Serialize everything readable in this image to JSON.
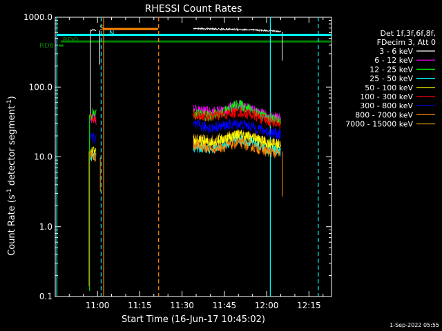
{
  "chart_data": {
    "type": "line",
    "title": "RHESSI Count Rates",
    "xlabel": "Start Time (16-Jun-17 10:45:02)",
    "ylabel_main": "Count Rate (s",
    "ylabel_sup": "-1",
    "ylabel_tail": " detector segment",
    "ylabel_sup2": "-1",
    "ylabel_close": ")",
    "yscale": "log",
    "ylim": [
      0.1,
      1000
    ],
    "xlim_minutes": [
      45.03,
      143
    ],
    "y_ticks": [
      {
        "v": 0.1,
        "label": "0.1"
      },
      {
        "v": 1,
        "label": "1.0"
      },
      {
        "v": 10,
        "label": "10.0"
      },
      {
        "v": 100,
        "label": "100.0"
      },
      {
        "v": 1000,
        "label": "1000.0"
      }
    ],
    "x_ticks": [
      {
        "v": 60,
        "label": "11:00"
      },
      {
        "v": 75,
        "label": "11:15"
      },
      {
        "v": 90,
        "label": "11:30"
      },
      {
        "v": 105,
        "label": "11:45"
      },
      {
        "v": 120,
        "label": "12:00"
      },
      {
        "v": 135,
        "label": "12:15"
      }
    ],
    "legend": {
      "header1": "Det 1f,3f,6f,8f,",
      "header2": "FDecim 3, Att 0",
      "placement": "right"
    },
    "series": [
      {
        "name": "3 - 6 keV",
        "color": "#ffffff",
        "seg1": [
          [
            57.5,
            640
          ],
          [
            58.5,
            660
          ],
          [
            59.5,
            650
          ]
        ],
        "seg2": [
          [
            94,
            690
          ],
          [
            100,
            680
          ],
          [
            110,
            670
          ],
          [
            118,
            650
          ],
          [
            122,
            640
          ],
          [
            125,
            620
          ]
        ]
      },
      {
        "name": "6 - 12 keV",
        "color": "#ff00ff",
        "seg1": [
          [
            57.5,
            35
          ],
          [
            58.5,
            37
          ],
          [
            59.5,
            36
          ]
        ],
        "seg2": [
          [
            94,
            47
          ],
          [
            100,
            44
          ],
          [
            105,
            47
          ],
          [
            110,
            55
          ],
          [
            115,
            48
          ],
          [
            120,
            38
          ],
          [
            125,
            35
          ]
        ]
      },
      {
        "name": "12 - 25 keV",
        "color": "#00ff00",
        "seg1": [
          [
            57.5,
            38
          ],
          [
            58.5,
            42
          ],
          [
            59.5,
            40
          ]
        ],
        "seg2": [
          [
            94,
            42
          ],
          [
            100,
            38
          ],
          [
            105,
            45
          ],
          [
            110,
            56
          ],
          [
            115,
            47
          ],
          [
            120,
            36
          ],
          [
            125,
            33
          ]
        ]
      },
      {
        "name": "25 - 50 keV",
        "color": "#00ffff",
        "seg1": [
          [
            57.5,
            10
          ],
          [
            58.5,
            11
          ],
          [
            59.5,
            10
          ]
        ],
        "seg2": [
          [
            94,
            14
          ],
          [
            100,
            13
          ],
          [
            105,
            15
          ],
          [
            110,
            18
          ],
          [
            115,
            16
          ],
          [
            120,
            13
          ],
          [
            125,
            12
          ]
        ]
      },
      {
        "name": "50 - 100 keV",
        "color": "#ffff00",
        "seg1": [
          [
            57.5,
            11
          ],
          [
            58.5,
            12
          ],
          [
            59.5,
            11
          ]
        ],
        "seg2": [
          [
            94,
            17
          ],
          [
            100,
            16
          ],
          [
            105,
            18
          ],
          [
            110,
            21
          ],
          [
            115,
            19
          ],
          [
            120,
            16
          ],
          [
            125,
            15
          ]
        ]
      },
      {
        "name": "100 - 300 keV",
        "color": "#ff0000",
        "seg1": [
          [
            57.5,
            34
          ],
          [
            58.5,
            35
          ],
          [
            59.5,
            33
          ]
        ],
        "seg2": [
          [
            94,
            40
          ],
          [
            100,
            38
          ],
          [
            105,
            40
          ],
          [
            110,
            44
          ],
          [
            115,
            40
          ],
          [
            120,
            33
          ],
          [
            125,
            30
          ]
        ]
      },
      {
        "name": "300 - 800 keV",
        "color": "#0000ff",
        "seg1": [
          [
            57.5,
            18
          ],
          [
            58.5,
            19
          ],
          [
            59.5,
            18
          ]
        ],
        "seg2": [
          [
            94,
            29
          ],
          [
            100,
            26
          ],
          [
            105,
            28
          ],
          [
            110,
            30
          ],
          [
            115,
            27
          ],
          [
            120,
            23
          ],
          [
            125,
            21
          ]
        ]
      },
      {
        "name": "800 - 7000 keV",
        "color": "#ff8800",
        "seg1": [
          [
            57.5,
            11
          ],
          [
            58.5,
            10
          ],
          [
            59.5,
            10
          ]
        ],
        "seg2": [
          [
            94,
            15
          ],
          [
            100,
            13
          ],
          [
            105,
            14
          ],
          [
            110,
            16
          ],
          [
            115,
            14
          ],
          [
            120,
            12
          ],
          [
            125,
            11
          ]
        ]
      },
      {
        "name": "7000 - 15000 keV",
        "color": "#b8860b",
        "seg1": [],
        "seg2": [
          [
            94,
            18
          ],
          [
            100,
            17
          ],
          [
            105,
            19
          ],
          [
            110,
            21
          ],
          [
            115,
            19
          ],
          [
            120,
            16
          ],
          [
            125,
            15
          ]
        ]
      }
    ],
    "flags": [
      {
        "label": "RD6",
        "color": "#008000"
      },
      {
        "label": "RDO",
        "color": "#008000"
      },
      {
        "label": "S",
        "color": "#ff8800"
      },
      {
        "label": "N",
        "color": "#00ffff"
      }
    ],
    "flag_bars": [
      {
        "from": 47,
        "to": 143,
        "y": 450,
        "color": "#008000"
      },
      {
        "from": 45.5,
        "to": 143,
        "y": 560,
        "color": "#00ffff"
      },
      {
        "from": 62,
        "to": 81.5,
        "y": 680,
        "color": "#ff8800"
      }
    ],
    "vlines": [
      {
        "x": 45.6,
        "color": "#00ffff",
        "dashed": false
      },
      {
        "x": 61.3,
        "color": "#00ffff",
        "dashed": true
      },
      {
        "x": 62.2,
        "color": "#ff8800",
        "dashed": false
      },
      {
        "x": 81.7,
        "color": "#ff8800",
        "dashed": true
      },
      {
        "x": 121.3,
        "color": "#00ffff",
        "dashed": false
      },
      {
        "x": 138.3,
        "color": "#00ffff",
        "dashed": true
      }
    ]
  },
  "footer": {
    "date": "1-Sep-2022 05:55"
  }
}
